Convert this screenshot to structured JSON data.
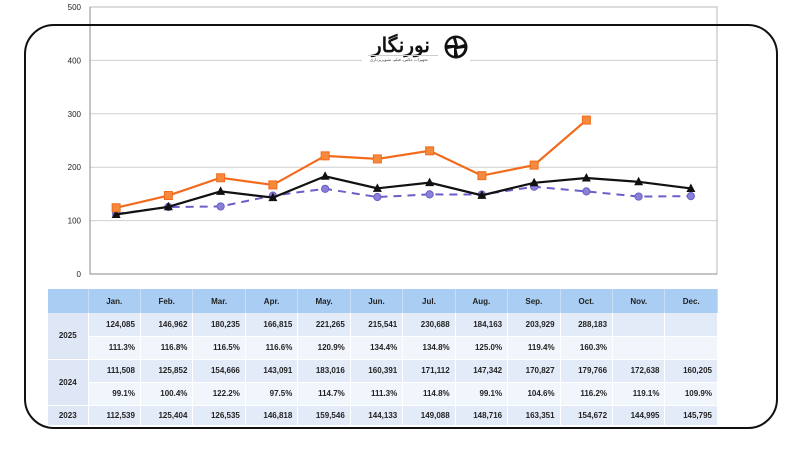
{
  "logo": {
    "brand": "نورنگار",
    "tagline": "تجهیزات عکس، فیلم، تصویربرداری"
  },
  "chart_data": {
    "type": "line",
    "title": "",
    "xlabel": "",
    "ylabel": "",
    "ylim": [
      0,
      500
    ],
    "yticks": [
      0,
      100,
      200,
      300,
      400,
      500
    ],
    "grid": true,
    "legend": "none (table below serves as legend)",
    "categories": [
      "Jan.",
      "Feb.",
      "Mar.",
      "Apr.",
      "May.",
      "Jun.",
      "Jul.",
      "Aug.",
      "Sep.",
      "Oct.",
      "Nov.",
      "Dec."
    ],
    "units": "thousands",
    "series": [
      {
        "name": "2025",
        "color": "#f26b1d",
        "marker": "square",
        "line_style": "solid",
        "values": [
          124.085,
          146.962,
          180.235,
          166.815,
          221.265,
          215.541,
          230.688,
          184.163,
          203.929,
          288.183,
          null,
          null
        ]
      },
      {
        "name": "2024",
        "color": "#111111",
        "marker": "triangle",
        "line_style": "solid",
        "values": [
          111.508,
          125.852,
          154.666,
          143.091,
          183.016,
          160.391,
          171.112,
          147.342,
          170.827,
          179.766,
          172.638,
          160.205
        ]
      },
      {
        "name": "2023",
        "color": "#6a5fc8",
        "marker": "circle",
        "line_style": "dashed",
        "values": [
          112.539,
          125.404,
          126.535,
          146.818,
          159.546,
          144.133,
          149.088,
          148.716,
          163.351,
          154.672,
          144.995,
          145.795
        ]
      }
    ]
  },
  "table": {
    "headers": [
      "",
      "Jan.",
      "Feb.",
      "Mar.",
      "Apr.",
      "May.",
      "Jun.",
      "Jul.",
      "Aug.",
      "Sep.",
      "Oct.",
      "Nov.",
      "Dec."
    ],
    "rows": [
      {
        "year": "2025",
        "values": [
          "124,085",
          "146,962",
          "180,235",
          "166,815",
          "221,265",
          "215,541",
          "230,688",
          "184,163",
          "203,929",
          "288,183",
          "",
          ""
        ],
        "percents": [
          "111.3%",
          "116.8%",
          "116.5%",
          "116.6%",
          "120.9%",
          "134.4%",
          "134.8%",
          "125.0%",
          "119.4%",
          "160.3%",
          "",
          ""
        ]
      },
      {
        "year": "2024",
        "values": [
          "111,508",
          "125,852",
          "154,666",
          "143,091",
          "183,016",
          "160,391",
          "171,112",
          "147,342",
          "170,827",
          "179,766",
          "172,638",
          "160,205"
        ],
        "percents": [
          "99.1%",
          "100.4%",
          "122.2%",
          "97.5%",
          "114.7%",
          "111.3%",
          "114.8%",
          "99.1%",
          "104.6%",
          "116.2%",
          "119.1%",
          "109.9%"
        ]
      },
      {
        "year": "2023",
        "values": [
          "112,539",
          "125,404",
          "126,535",
          "146,818",
          "159,546",
          "144,133",
          "149,088",
          "148,716",
          "163,351",
          "154,672",
          "144,995",
          "145,795"
        ]
      }
    ]
  }
}
